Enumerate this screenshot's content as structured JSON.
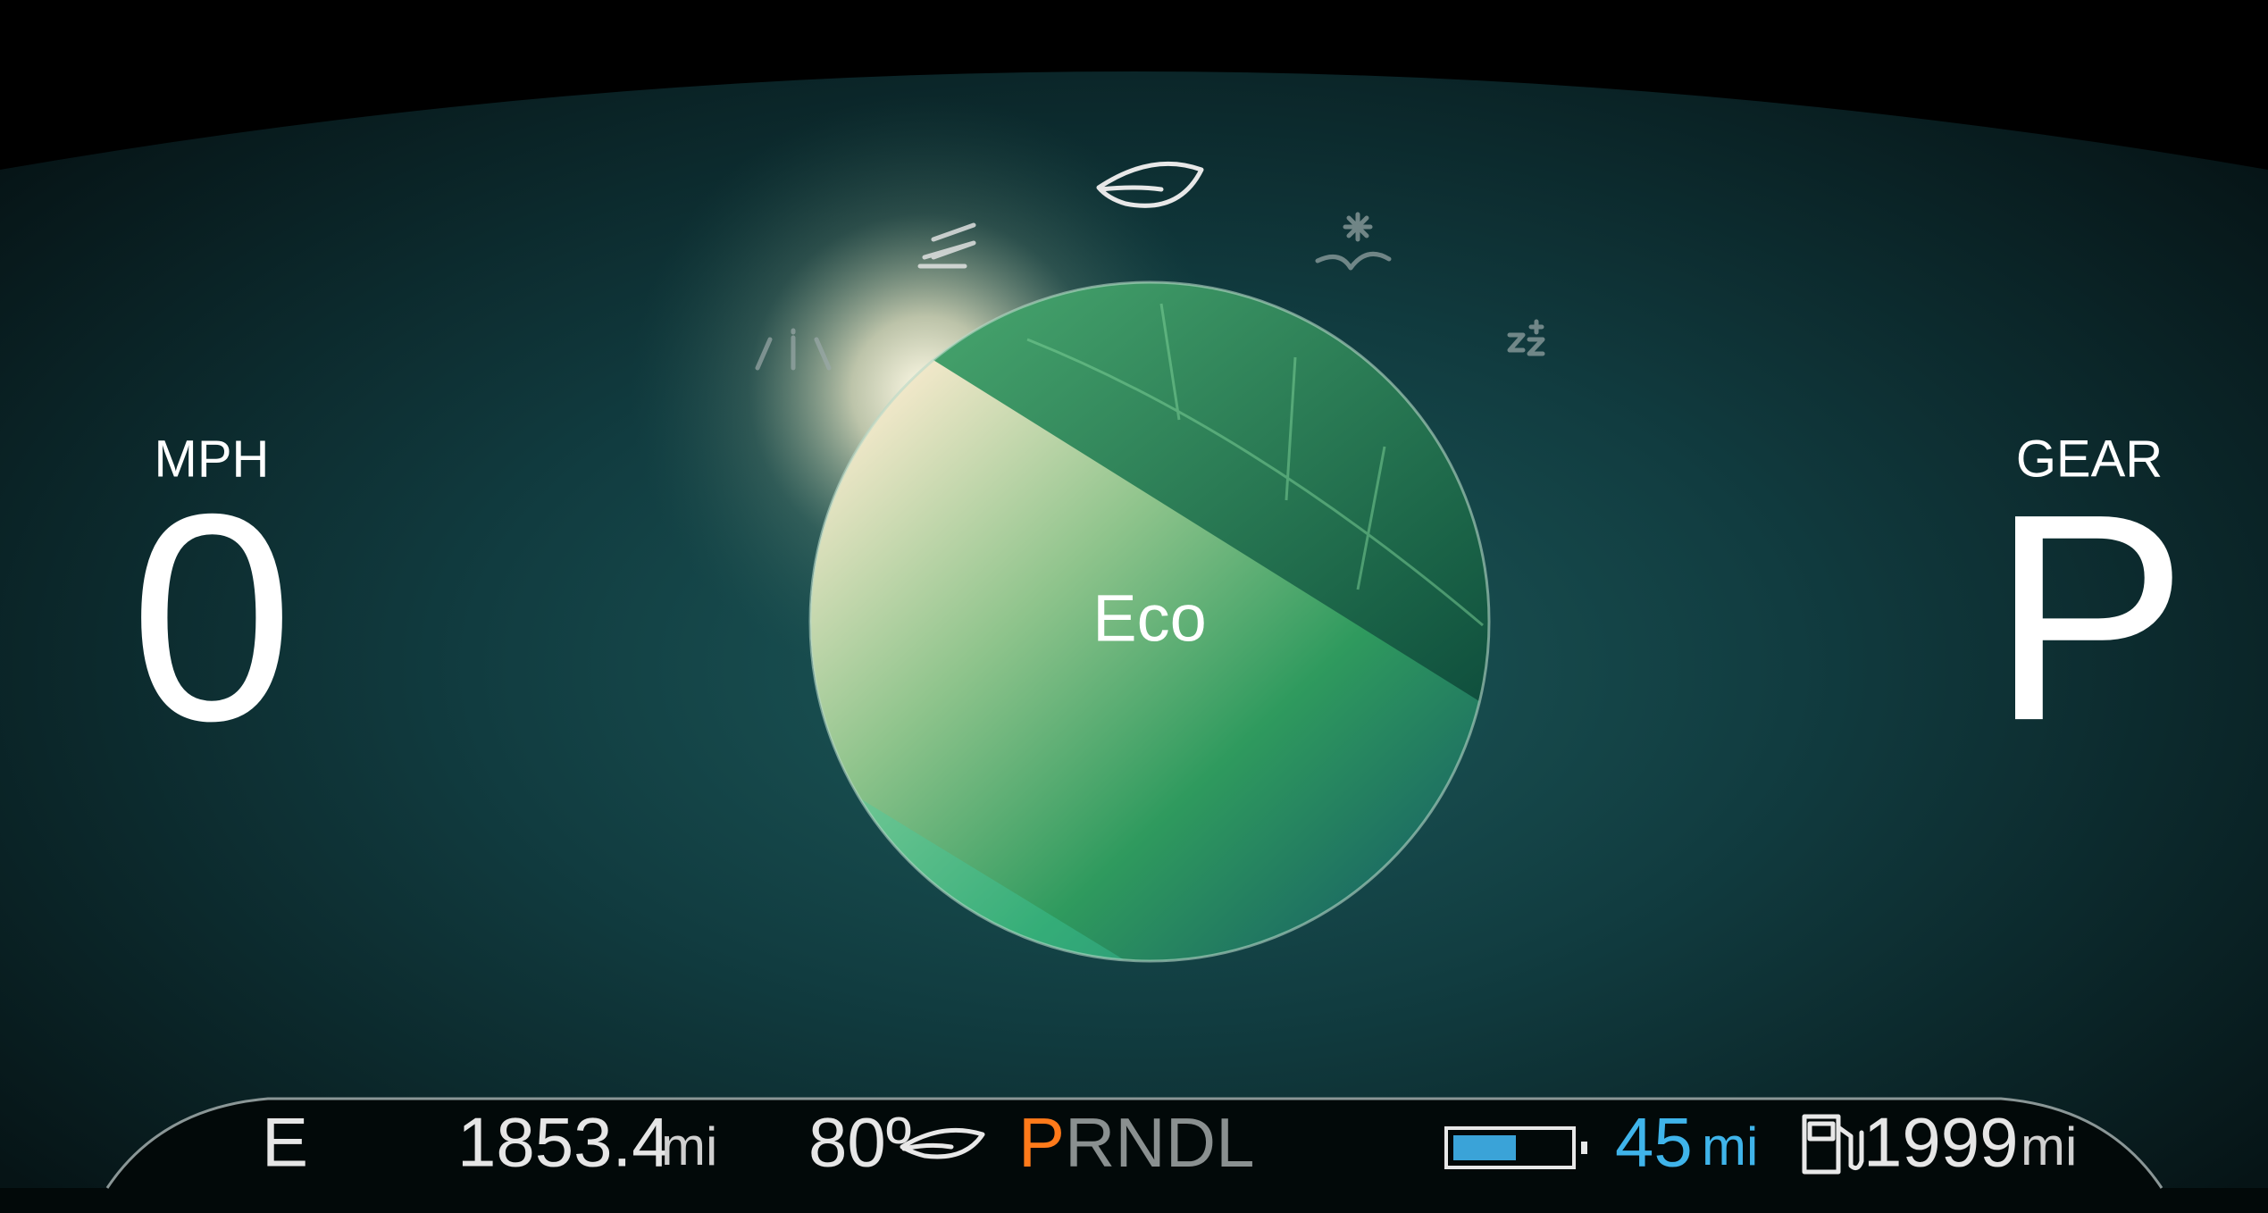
{
  "speed": {
    "label": "MPH",
    "value": "0"
  },
  "gear": {
    "label": "GEAR",
    "value": "P"
  },
  "drive_mode": {
    "label": "Eco"
  },
  "status_bar": {
    "compass": "E",
    "odometer": {
      "value": "1853.4",
      "unit": "mi"
    },
    "temperature": "80º",
    "gear_selector": [
      "P",
      "R",
      "N",
      "D",
      "L"
    ],
    "ev_range": {
      "value": "45",
      "unit": "mi"
    },
    "fuel_range": {
      "value": "1999",
      "unit": "mi"
    }
  }
}
